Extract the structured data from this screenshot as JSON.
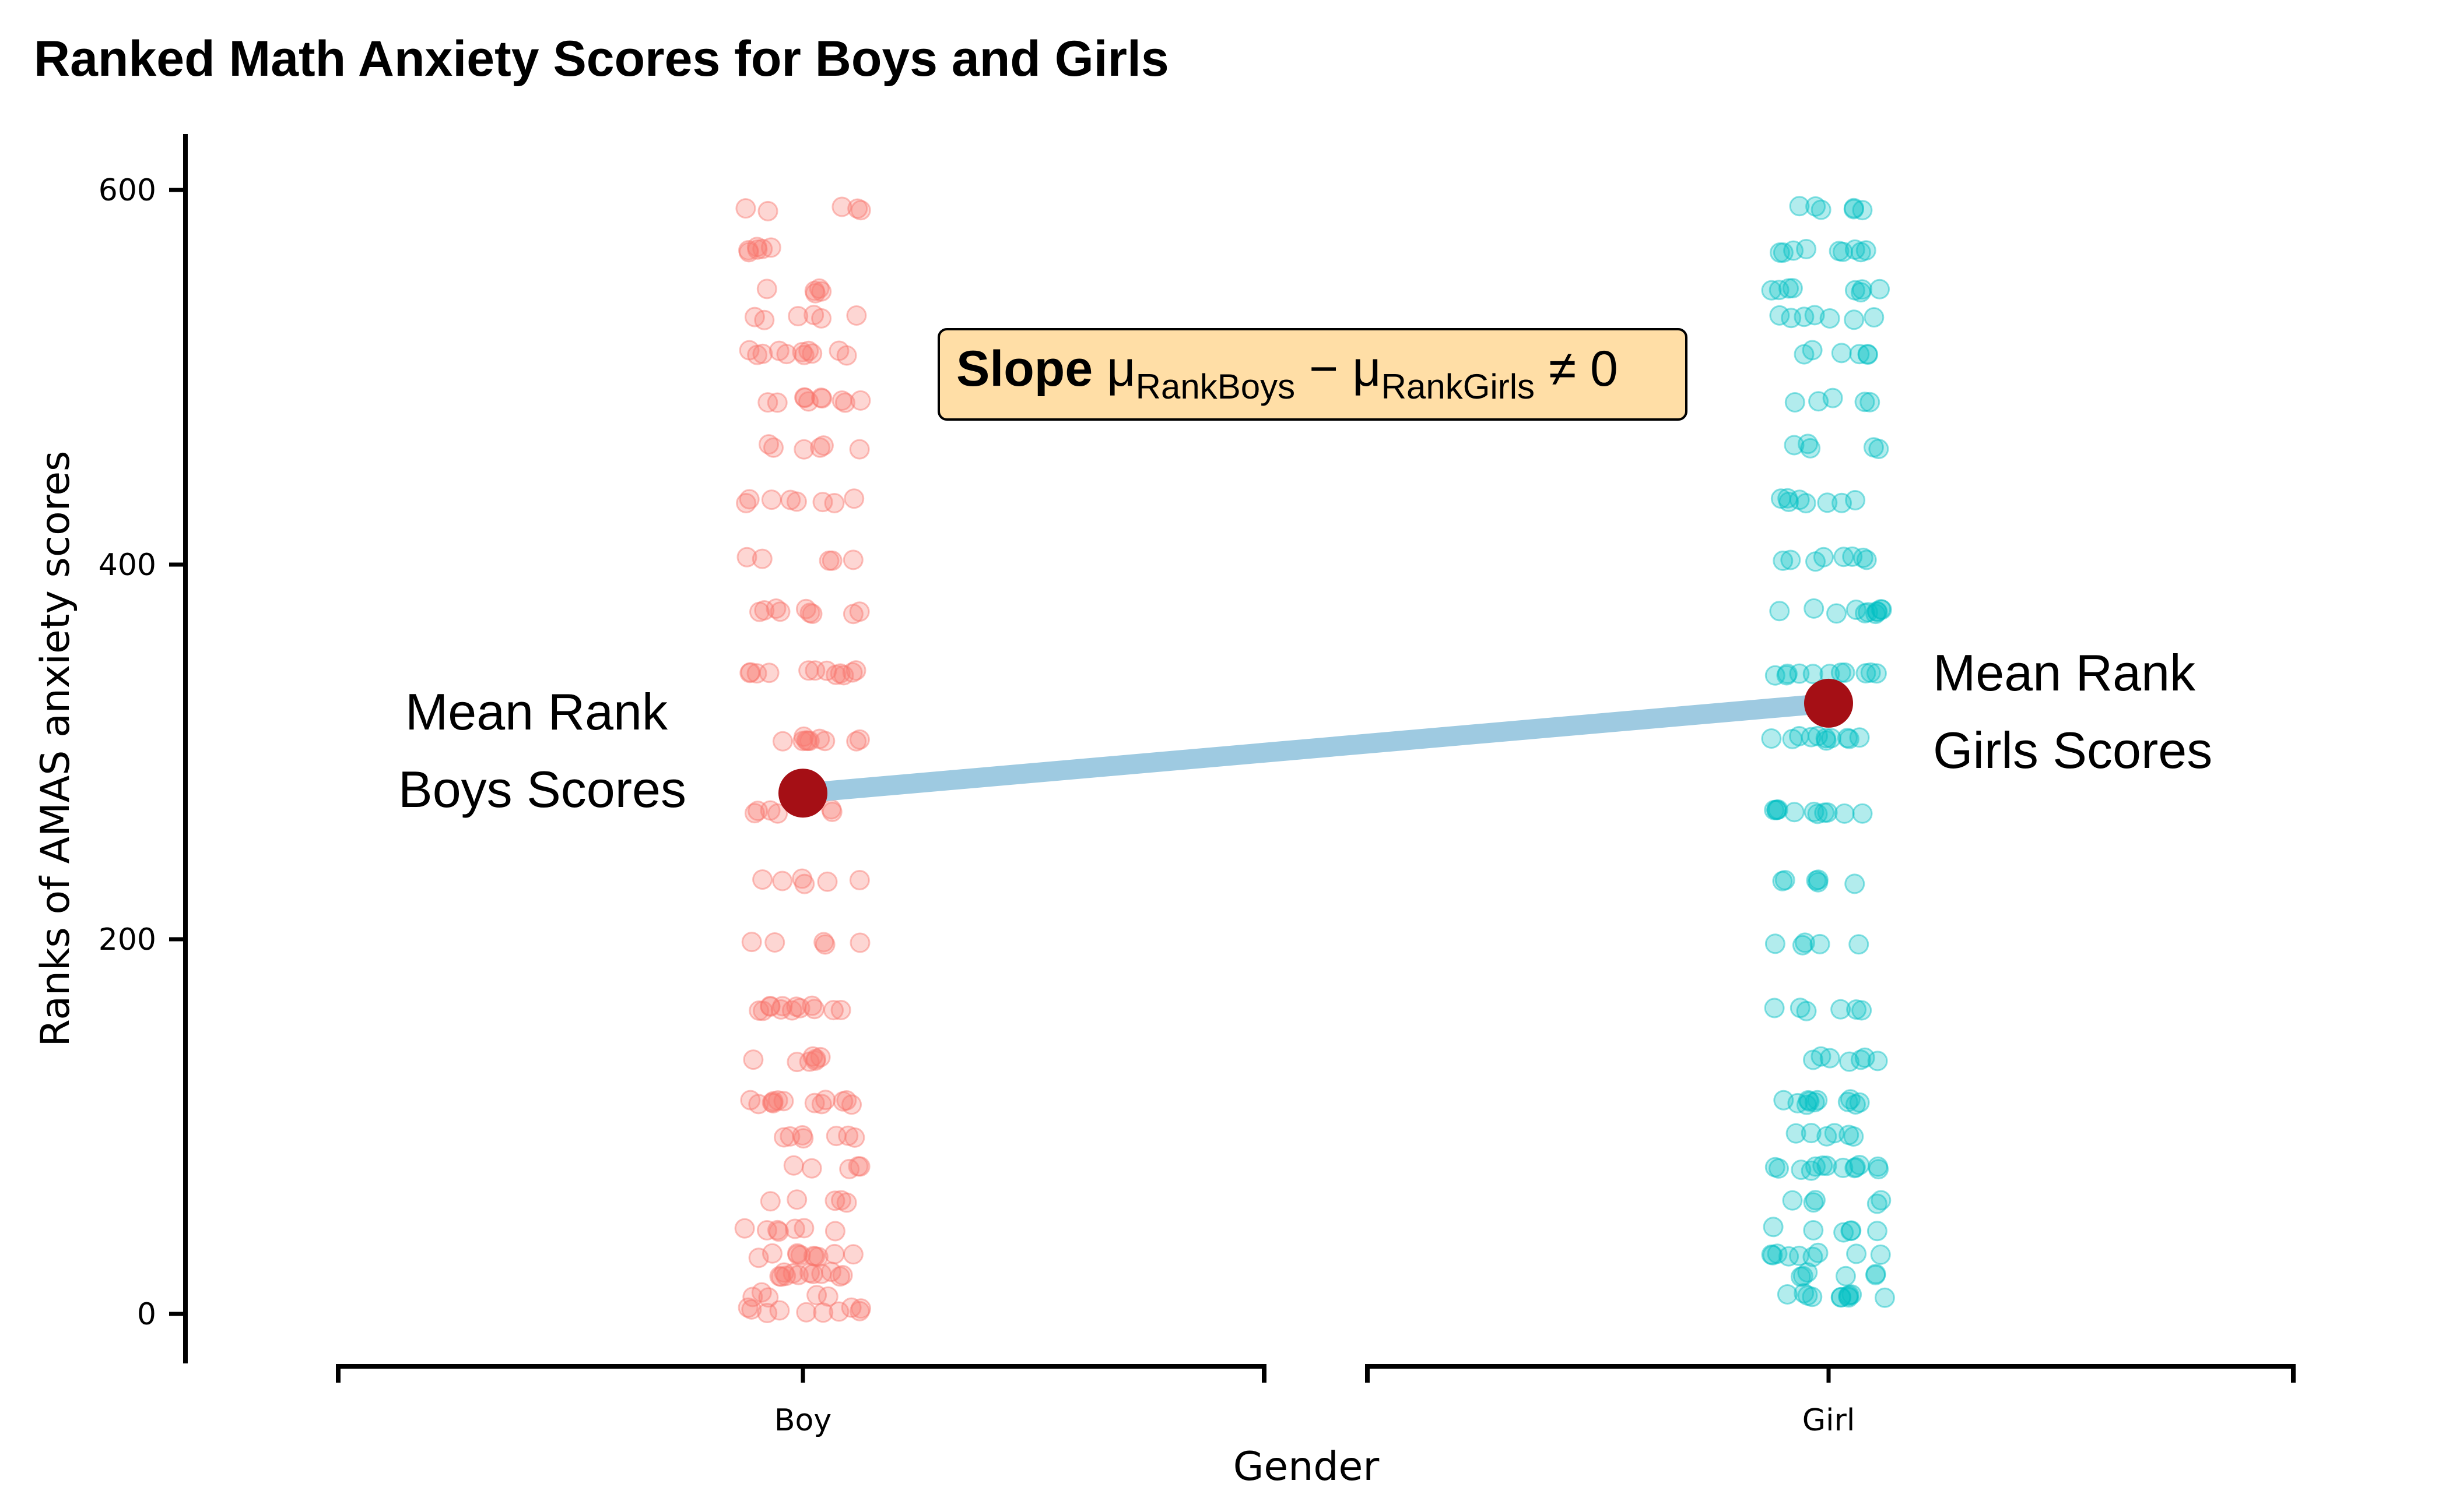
{
  "chart_data": {
    "type": "scatter",
    "title": "Ranked Math Anxiety Scores for Boys and Girls",
    "xlabel": "Gender",
    "ylabel": "Ranks of AMAS anxiety scores",
    "categories": [
      "Boy",
      "Girl"
    ],
    "yticks": [
      0,
      200,
      400,
      600
    ],
    "ylim": [
      -27,
      627
    ],
    "grid": false,
    "series": [
      {
        "name": "Boy",
        "color": "#F8766D",
        "point_opacity": 0.3,
        "rank_levels": [
          2,
          10,
          21,
          31,
          45,
          60,
          78,
          95,
          113,
          136,
          163,
          197,
          231,
          268,
          307,
          342,
          375,
          403,
          434,
          463,
          488,
          513,
          532,
          546,
          568,
          590
        ],
        "mean_rank": 278
      },
      {
        "name": "Girl",
        "color": "#00BFC4",
        "point_opacity": 0.3,
        "rank_levels": [
          10,
          21,
          31,
          45,
          60,
          78,
          95,
          113,
          136,
          163,
          197,
          231,
          268,
          307,
          342,
          375,
          403,
          434,
          463,
          488,
          513,
          532,
          546,
          568,
          590
        ],
        "mean_rank": 326
      }
    ],
    "mean_line_color": "#9ECAE1",
    "mean_point_color": "#A50F15",
    "annotations": {
      "boy_mean_line1": "Mean Rank",
      "boy_mean_line2": "Boys Scores",
      "girl_mean_line1": "Mean Rank",
      "girl_mean_line2": "Girls Scores",
      "slope_label": "Slope",
      "slope_mu": "μ",
      "slope_sub1": "RankBoys",
      "slope_minus": " − μ",
      "slope_sub2": "RankGirls",
      "slope_tail": " ≠ 0",
      "box_fill": "#FFDEA6"
    }
  }
}
